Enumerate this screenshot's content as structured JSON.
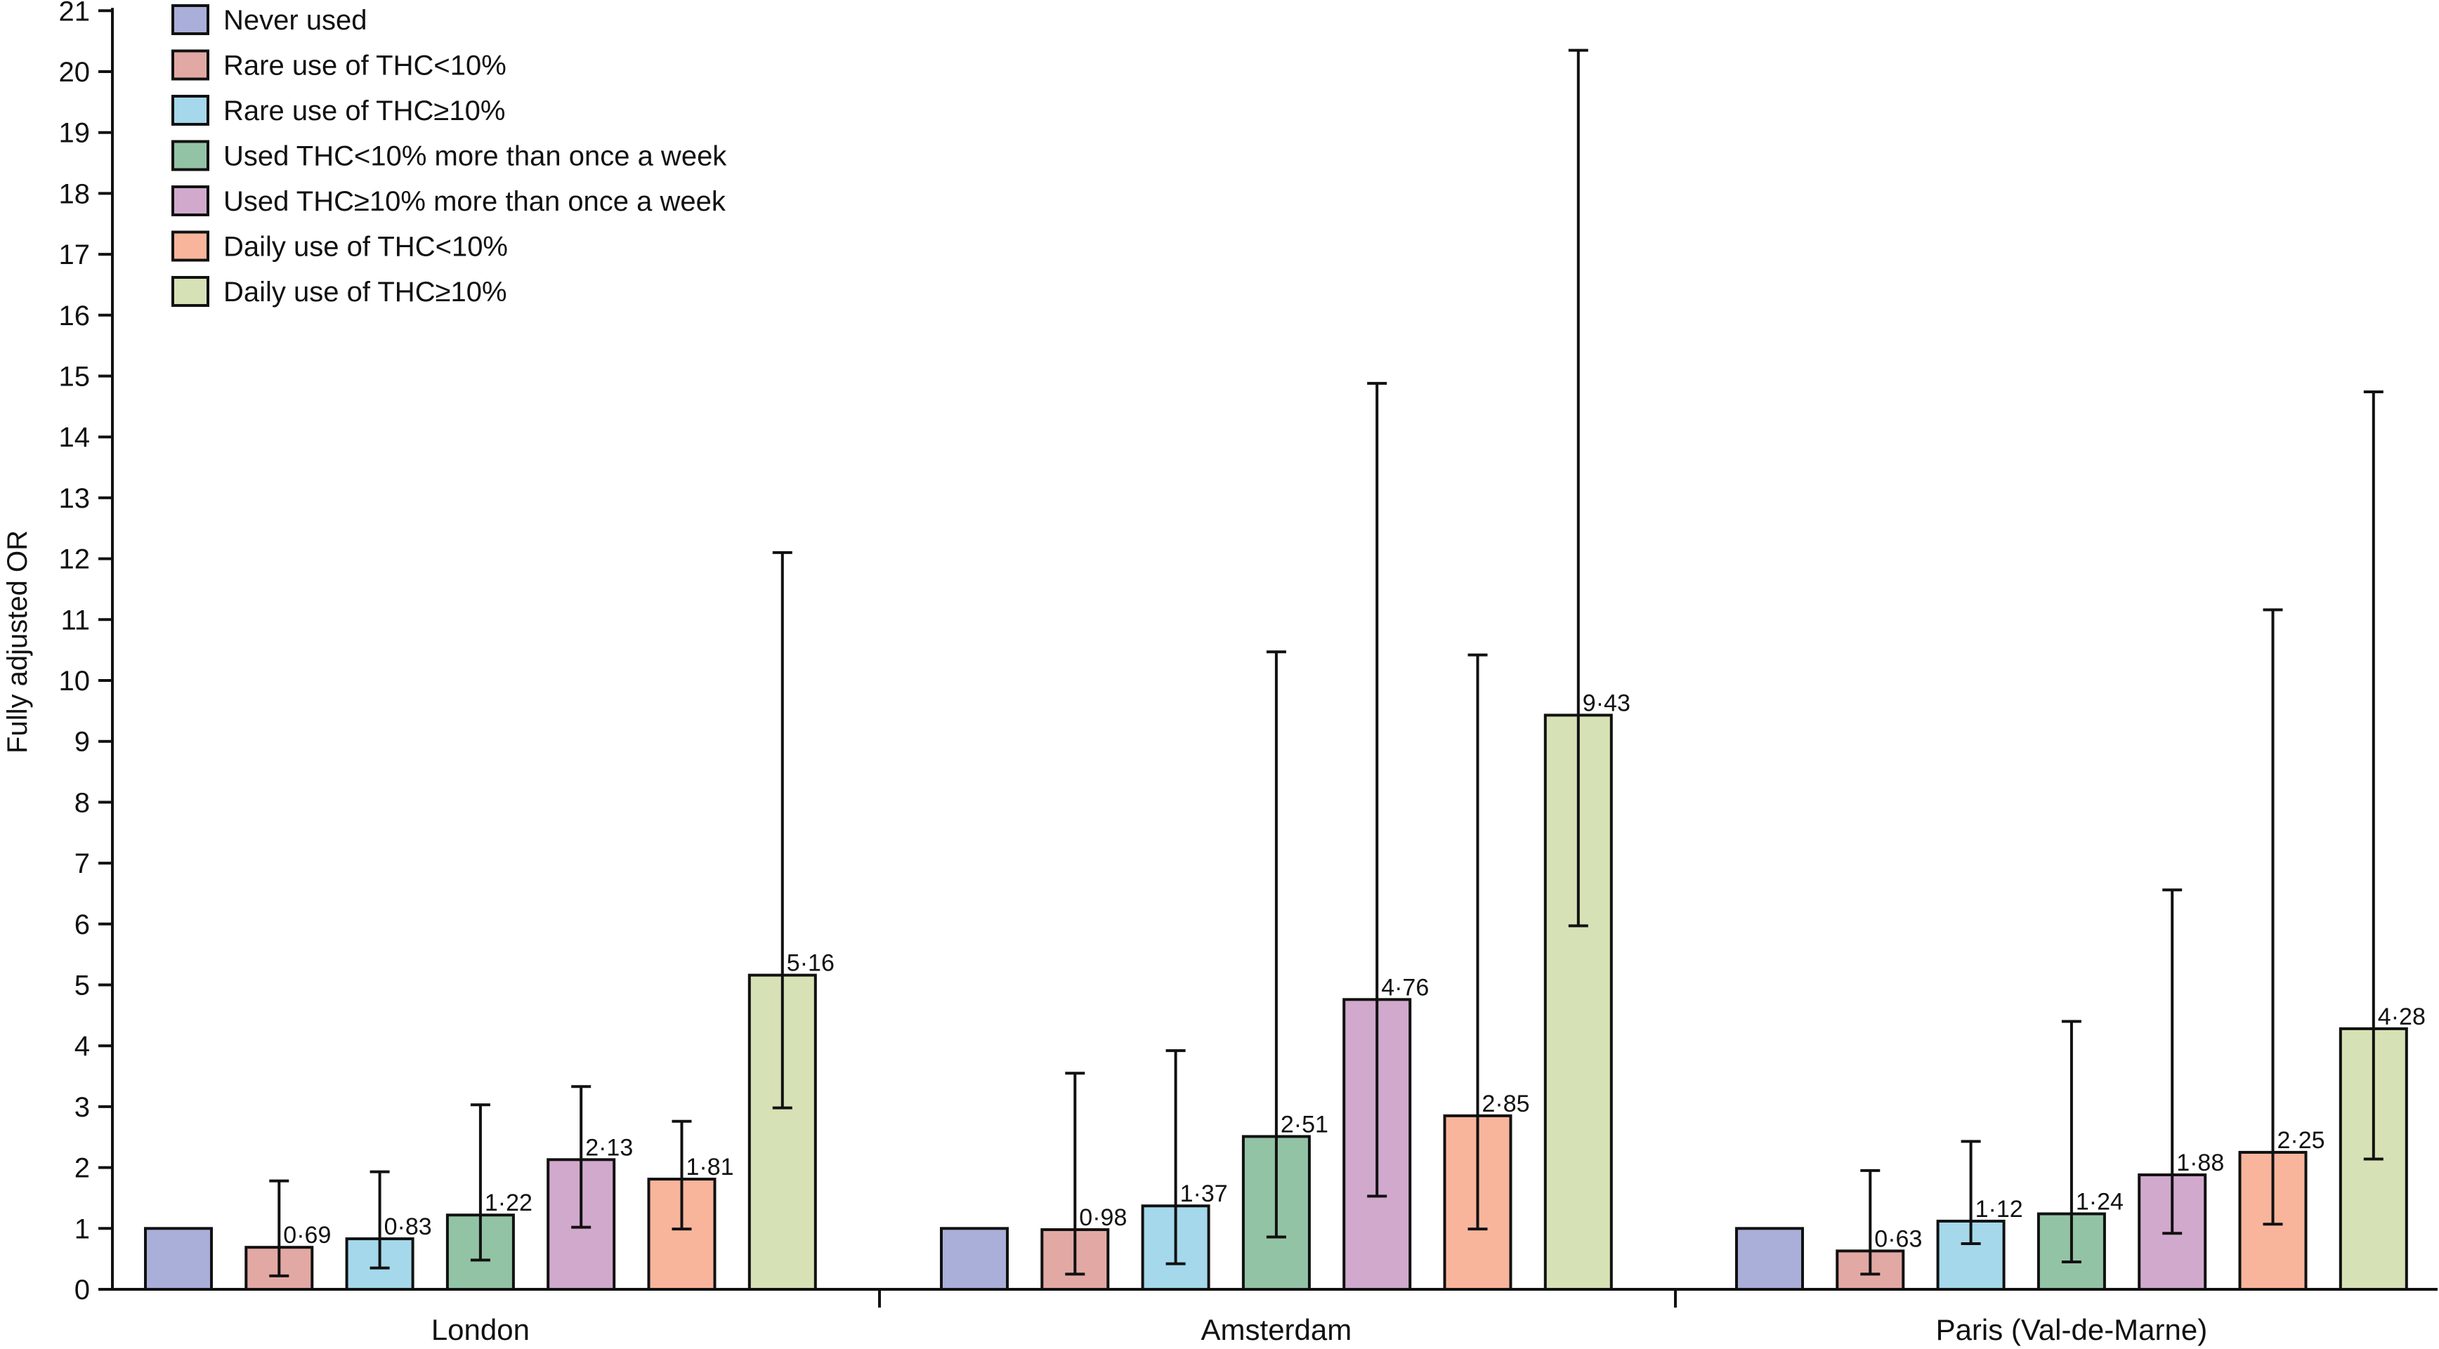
{
  "chart_data": {
    "type": "bar",
    "title": "",
    "xlabel": "",
    "ylabel": "Fully adjusted OR",
    "ylim": [
      0,
      21
    ],
    "yticks": [
      0,
      1,
      2,
      3,
      4,
      5,
      6,
      7,
      8,
      9,
      10,
      11,
      12,
      13,
      14,
      15,
      16,
      17,
      18,
      19,
      20,
      21
    ],
    "grid": false,
    "legend_position": "top-left",
    "categories": [
      "London",
      "Amsterdam",
      "Paris (Val-de-Marne)"
    ],
    "series": [
      {
        "name": "Never used",
        "color": "#a9afd9",
        "values": [
          1,
          1,
          1
        ],
        "labels": [
          "",
          "",
          ""
        ],
        "ci_low": [
          null,
          null,
          null
        ],
        "ci_high": [
          null,
          null,
          null
        ]
      },
      {
        "name": "Rare use of THC<10%",
        "color": "#e2a9a4",
        "values": [
          0.69,
          0.98,
          0.63
        ],
        "labels": [
          "0·69",
          "0·98",
          "0·63"
        ],
        "ci_low": [
          0.22,
          0.25,
          0.25
        ],
        "ci_high": [
          1.78,
          3.55,
          1.95
        ]
      },
      {
        "name": "Rare use of THC≥10%",
        "color": "#a5d8eb",
        "values": [
          0.83,
          1.37,
          1.12
        ],
        "labels": [
          "0·83",
          "1·37",
          "1·12"
        ],
        "ci_low": [
          0.35,
          0.42,
          0.75
        ],
        "ci_high": [
          1.93,
          3.92,
          2.43
        ]
      },
      {
        "name": "Used THC<10% more than once a week",
        "color": "#93c3a5",
        "values": [
          1.22,
          2.51,
          1.24
        ],
        "labels": [
          "1·22",
          "2·51",
          "1·24"
        ],
        "ci_low": [
          0.48,
          0.86,
          0.45
        ],
        "ci_high": [
          3.03,
          10.47,
          4.4
        ]
      },
      {
        "name": "Used THC≥10% more than once a week",
        "color": "#d1a9cd",
        "values": [
          2.13,
          4.76,
          1.88
        ],
        "labels": [
          "2·13",
          "4·76",
          "1·88"
        ],
        "ci_low": [
          1.02,
          1.53,
          0.92
        ],
        "ci_high": [
          3.33,
          14.88,
          6.56
        ]
      },
      {
        "name": "Daily use of THC<10%",
        "color": "#f8b59c",
        "values": [
          1.81,
          2.85,
          2.25
        ],
        "labels": [
          "1·81",
          "2·85",
          "2·25"
        ],
        "ci_low": [
          0.99,
          0.99,
          1.07
        ],
        "ci_high": [
          2.76,
          10.42,
          11.16
        ]
      },
      {
        "name": "Daily use of THC≥10%",
        "color": "#d6e2b5",
        "values": [
          5.16,
          9.43,
          4.28
        ],
        "labels": [
          "5·16",
          "9·43",
          "4·28"
        ],
        "ci_low": [
          2.98,
          5.97,
          2.14
        ],
        "ci_high": [
          12.1,
          20.35,
          14.74
        ]
      }
    ]
  }
}
